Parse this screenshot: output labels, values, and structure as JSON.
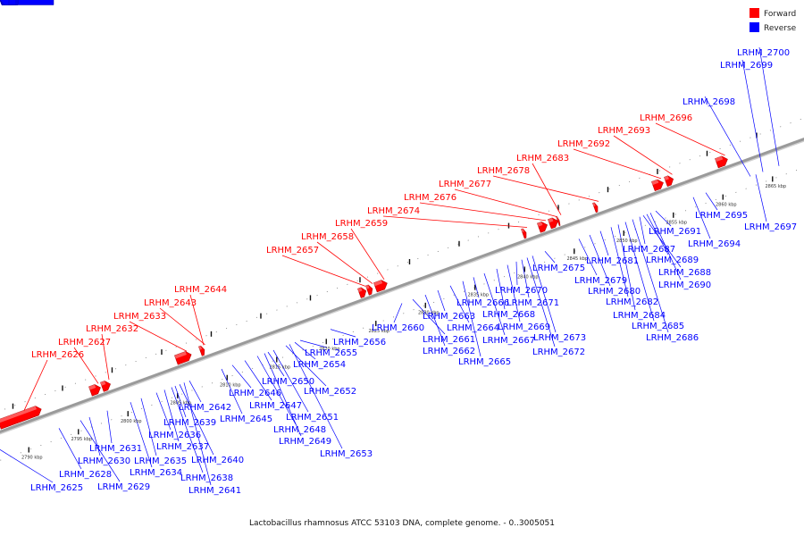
{
  "caption": "Lactobacillus rhamnosus ATCC 53103 DNA, complete genome. - 0..3005051",
  "legend": [
    {
      "label": "Forward",
      "color": "#ff0000"
    },
    {
      "label": "Reverse",
      "color": "#0000ff"
    }
  ],
  "colors": {
    "forward": "#ff0000",
    "reverse": "#0000ff",
    "backbone": "#9a9a9a"
  },
  "kbp_labels": [
    "2790 kbp",
    "2795 kbp",
    "2800 kbp",
    "2805 kbp",
    "2810 kbp",
    "2815 kbp",
    "2820 kbp",
    "2825 kbp",
    "2830 kbp",
    "2835 kbp",
    "2840 kbp",
    "2845 kbp",
    "2850 kbp",
    "2855 kbp",
    "2860 kbp",
    "2865 kbp"
  ],
  "forward_genes": [
    "LRHM_2626",
    "LRHM_2627",
    "LRHM_2632",
    "LRHM_2633",
    "LRHM_2643",
    "LRHM_2644",
    "LRHM_2657",
    "LRHM_2658",
    "LRHM_2659",
    "LRHM_2674",
    "LRHM_2676",
    "LRHM_2677",
    "LRHM_2678",
    "LRHM_2683",
    "LRHM_2692",
    "LRHM_2693",
    "LRHM_2696"
  ],
  "reverse_genes": [
    "LRHM_2625",
    "LRHM_2628",
    "LRHM_2629",
    "LRHM_2630",
    "LRHM_2631",
    "LRHM_2634",
    "LRHM_2635",
    "LRHM_2636",
    "LRHM_2637",
    "LRHM_2638",
    "LRHM_2639",
    "LRHM_2640",
    "LRHM_2641",
    "LRHM_2642",
    "LRHM_2645",
    "LRHM_2646",
    "LRHM_2647",
    "LRHM_2648",
    "LRHM_2649",
    "LRHM_2650",
    "LRHM_2651",
    "LRHM_2652",
    "LRHM_2653",
    "LRHM_2654",
    "LRHM_2655",
    "LRHM_2656",
    "LRHM_2660",
    "LRHM_2661",
    "LRHM_2662",
    "LRHM_2663",
    "LRHM_2664",
    "LRHM_2665",
    "LRHM_2666",
    "LRHM_2667",
    "LRHM_2668",
    "LRHM_2669",
    "LRHM_2670",
    "LRHM_2671",
    "LRHM_2672",
    "LRHM_2673",
    "LRHM_2675",
    "LRHM_2679",
    "LRHM_2680",
    "LRHM_2681",
    "LRHM_2682",
    "LRHM_2684",
    "LRHM_2685",
    "LRHM_2686",
    "LRHM_2687",
    "LRHM_2688",
    "LRHM_2689",
    "LRHM_2690",
    "LRHM_2691",
    "LRHM_2694",
    "LRHM_2695",
    "LRHM_2697",
    "LRHM_2698",
    "LRHM_2699",
    "LRHM_2700"
  ]
}
